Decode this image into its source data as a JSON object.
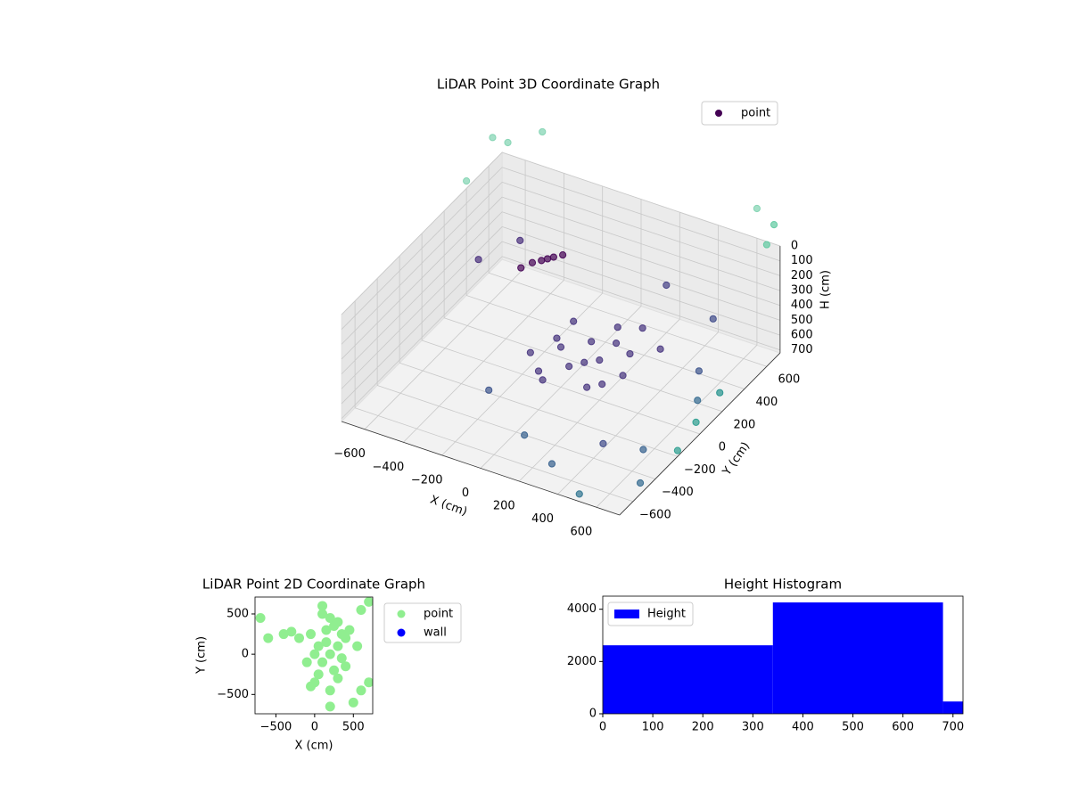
{
  "chart_data": [
    {
      "type": "scatter3d",
      "title": "LiDAR Point 3D Coordinate Graph",
      "xlabel": "X (cm)",
      "ylabel": "Y (cm)",
      "zlabel": "H (cm)",
      "xlim": [
        -720,
        720
      ],
      "ylim": [
        -720,
        720
      ],
      "zlim": [
        720,
        0
      ],
      "xticks": [
        {
          "value": -600,
          "label": "−600"
        },
        {
          "value": -400,
          "label": "−400"
        },
        {
          "value": -200,
          "label": "−200"
        },
        0,
        200,
        400,
        600
      ],
      "yticks": [
        {
          "value": -600,
          "label": "−600"
        },
        {
          "value": -400,
          "label": "−400"
        },
        {
          "value": -200,
          "label": "−200"
        },
        0,
        200,
        400,
        600
      ],
      "zticks": [
        0,
        100,
        200,
        300,
        400,
        500,
        600,
        700
      ],
      "grid": true,
      "legend": "upper right",
      "series": [
        {
          "name": "point",
          "color": "#440154",
          "x": [
            0,
            100,
            200,
            300,
            -50,
            150,
            250,
            350,
            50,
            -100,
            400,
            200,
            100,
            0,
            300,
            -50,
            250,
            150,
            -350,
            -300,
            -250,
            -380,
            -320,
            -280,
            -600,
            -500,
            200,
            500,
            600,
            450,
            300,
            600,
            700,
            500,
            100,
            -200,
            650,
            -700,
            -500,
            -650,
            700,
            720,
            600,
            -720,
            700,
            720,
            650
          ],
          "y": [
            0,
            -100,
            0,
            100,
            200,
            250,
            -200,
            -50,
            -250,
            -100,
            200,
            150,
            100,
            -200,
            -150,
            50,
            300,
            -50,
            350,
            400,
            450,
            300,
            380,
            420,
            300,
            500,
            600,
            500,
            200,
            -400,
            -600,
            -300,
            -500,
            -700,
            -500,
            -300,
            100,
            600,
            700,
            650,
            700,
            600,
            720,
            400,
            0,
            -200,
            300
          ],
          "z": [
            450,
            460,
            450,
            440,
            450,
            440,
            460,
            450,
            460,
            455,
            440,
            450,
            445,
            460,
            455,
            450,
            440,
            450,
            300,
            290,
            280,
            310,
            295,
            285,
            350,
            330,
            400,
            420,
            500,
            600,
            650,
            650,
            680,
            690,
            620,
            600,
            600,
            -200,
            -250,
            -150,
            -150,
            -100,
            -200,
            -50,
            650,
            680,
            700
          ],
          "colors": [
            "#46337e",
            "#46337e",
            "#46337e",
            "#46337e",
            "#46337e",
            "#46337e",
            "#46337e",
            "#46337e",
            "#46337e",
            "#46337e",
            "#46337e",
            "#46337e",
            "#46337e",
            "#46337e",
            "#46337e",
            "#46337e",
            "#46337e",
            "#46337e",
            "#440154",
            "#440154",
            "#440154",
            "#440154",
            "#440154",
            "#440154",
            "#472d7b",
            "#472d7b",
            "#433e85",
            "#3e4a89",
            "#3b528b",
            "#3e4a89",
            "#355f8d",
            "#355f8d",
            "#31688e",
            "#2c728e",
            "#355f8d",
            "#3b528b",
            "#31688e",
            "#7fd3b0",
            "#7fd3b0",
            "#7fd3b0",
            "#5ec9a0",
            "#5ec9a0",
            "#7fd3b0",
            "#7fd3b0",
            "#2a9d8f",
            "#2a9d8f",
            "#21918c"
          ]
        }
      ]
    },
    {
      "type": "scatter",
      "title": "LiDAR Point 2D Coordinate Graph",
      "xlabel": "X (cm)",
      "ylabel": "Y (cm)",
      "xlim": [
        -770,
        750
      ],
      "ylim": [
        -740,
        710
      ],
      "xticks": [
        {
          "value": -500,
          "label": "−500"
        },
        0,
        500
      ],
      "yticks": [
        {
          "value": -500,
          "label": "−500"
        },
        0,
        500
      ],
      "legend": "outside right",
      "series": [
        {
          "name": "point",
          "color": "#90ee90",
          "x": [
            0,
            100,
            200,
            300,
            400,
            -50,
            150,
            250,
            350,
            50,
            -100,
            200,
            100,
            0,
            300,
            250,
            150,
            50,
            400,
            350,
            -50,
            100,
            200,
            300,
            -700,
            -600,
            -400,
            -200,
            700,
            600,
            500,
            200,
            700,
            600,
            450,
            -300,
            550
          ],
          "y": [
            0,
            -100,
            0,
            100,
            200,
            250,
            300,
            -200,
            -50,
            -250,
            -100,
            450,
            500,
            -350,
            -300,
            350,
            150,
            100,
            -150,
            250,
            -400,
            600,
            -450,
            400,
            450,
            200,
            250,
            200,
            650,
            550,
            -600,
            -650,
            -350,
            -450,
            300,
            280,
            100
          ]
        },
        {
          "name": "wall",
          "color": "#0000ff",
          "x": [],
          "y": []
        }
      ]
    },
    {
      "type": "histogram",
      "title": "Height Histogram",
      "xlim": [
        0,
        720
      ],
      "ylim": [
        0,
        4500
      ],
      "xticks": [
        0,
        100,
        200,
        300,
        400,
        500,
        600,
        700
      ],
      "yticks": [
        0,
        2000,
        4000
      ],
      "legend": "upper left",
      "series": [
        {
          "name": "Height",
          "color": "#0000ff",
          "bins": [
            0,
            340,
            680,
            1020
          ],
          "counts": [
            2620,
            4260,
            470
          ]
        }
      ]
    }
  ]
}
